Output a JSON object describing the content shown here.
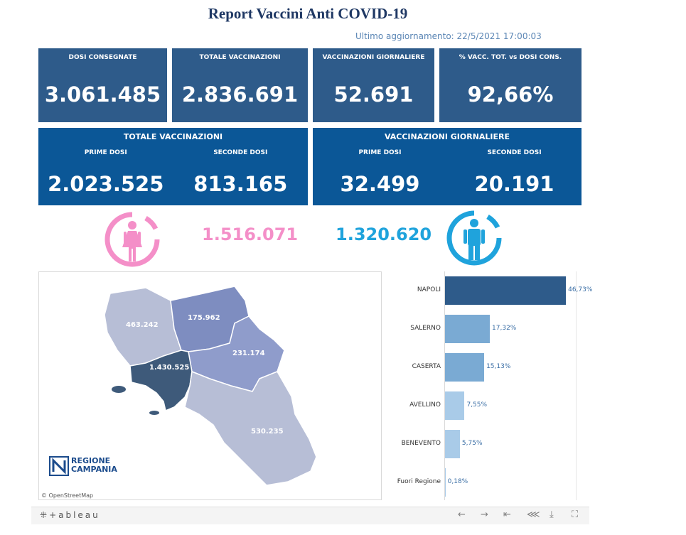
{
  "header": {
    "title": "Report Vaccini Anti COVID-19",
    "updated": "Ultimo aggiornamento: 22/5/2021  17:00:03"
  },
  "kpis": [
    {
      "label": "DOSI  CONSEGNATE",
      "value": "3.061.485"
    },
    {
      "label": "TOTALE VACCINAZIONI",
      "value": "2.836.691"
    },
    {
      "label": "VACCINAZIONI GIORNALIERE",
      "value": "52.691"
    },
    {
      "label": "% VACC. TOT. vs DOSI CONS.",
      "value": "92,66%"
    }
  ],
  "panels": [
    {
      "title": "TOTALE VACCINAZIONI",
      "first_label": "PRIME DOSI",
      "first_value": "2.023.525",
      "second_label": "SECONDE DOSI",
      "second_value": "813.165"
    },
    {
      "title": "VACCINAZIONI GIORNALIERE",
      "first_label": "PRIME DOSI",
      "first_value": "32.499",
      "second_label": "SECONDE DOSI",
      "second_value": "20.191"
    }
  ],
  "gender": {
    "female_value": "1.516.071",
    "male_value": "1.320.620",
    "female_color": "#f48fc8",
    "male_color": "#1fa3dc"
  },
  "map": {
    "regions": [
      {
        "name": "Caserta",
        "value": "463.242"
      },
      {
        "name": "Benevento",
        "value": "175.962"
      },
      {
        "name": "Avellino",
        "value": "231.174"
      },
      {
        "name": "Napoli",
        "value": "1.430.525"
      },
      {
        "name": "Salerno",
        "value": "530.235"
      }
    ],
    "logo_line1": "REGIONE",
    "logo_line2": "CAMPANIA",
    "credit": "© OpenStreetMap"
  },
  "chart_data": {
    "type": "bar",
    "orientation": "horizontal",
    "categories": [
      "NAPOLI",
      "SALERNO",
      "CASERTA",
      "AVELLINO",
      "BENEVENTO",
      "Fuori Regione"
    ],
    "values": [
      46.73,
      17.32,
      15.13,
      7.55,
      5.75,
      0.18
    ],
    "labels": [
      "46,73%",
      "17,32%",
      "15,13%",
      "7,55%",
      "5,75%",
      "0,18%"
    ],
    "colors": [
      "#2e5b8a",
      "#7aaad3",
      "#7aaad3",
      "#a9cbe8",
      "#a9cbe8",
      "#a9cbe8"
    ],
    "xlim": [
      0,
      50
    ],
    "grid": false
  },
  "footer": {
    "brand": "+ableau"
  }
}
